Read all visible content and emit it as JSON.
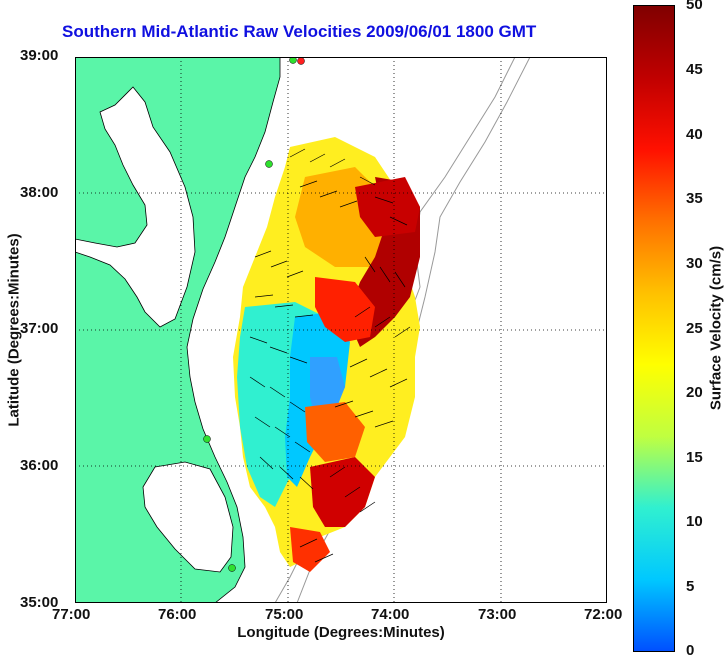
{
  "title": "Southern Mid-Atlantic Raw Velocities 2009/06/01 1800 GMT",
  "xlabel": "Longitude (Degrees:Minutes)",
  "ylabel": "Latitude (Degrees:Minutes)",
  "x_ticks": [
    "77:00",
    "76:00",
    "75:00",
    "74:00",
    "73:00",
    "72:00"
  ],
  "y_ticks": [
    "39:00",
    "38:00",
    "37:00",
    "36:00",
    "35:00"
  ],
  "colorbar": {
    "label": "Surface Velocity (cm/s)",
    "ticks": [
      "50",
      "45",
      "40",
      "35",
      "30",
      "25",
      "20",
      "15",
      "10",
      "5",
      "0"
    ],
    "range": [
      0,
      50
    ],
    "colors": [
      "#0050ff",
      "#00c8ff",
      "#30f0d0",
      "#c0ff40",
      "#ffff00",
      "#ffc000",
      "#ff7000",
      "#ff1000",
      "#c00000",
      "#800000"
    ]
  },
  "map": {
    "lon_range": [
      -77,
      -72
    ],
    "lat_range": [
      35,
      39
    ],
    "grid": true,
    "land_color": "#5af5a8",
    "water_color": "#ffffff",
    "coast_color": "#000000",
    "bathymetry_color": "#999999",
    "station_color": "#2fe02f",
    "station_highlight_color": "#ff2020"
  }
}
